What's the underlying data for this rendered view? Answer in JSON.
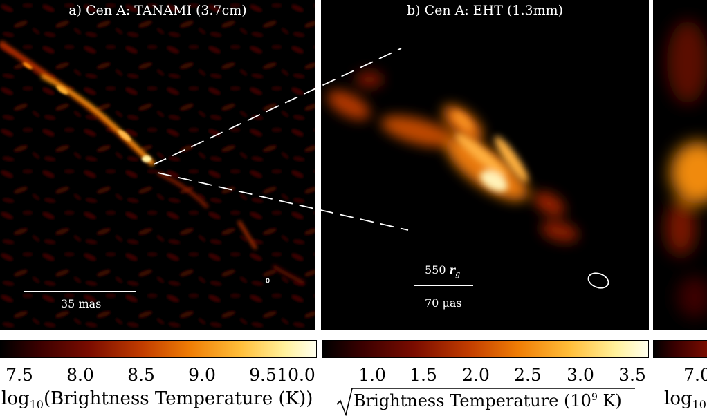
{
  "panels": {
    "a": {
      "title": "a) Cen A: TANAMI (3.7cm)",
      "scale_label": "35 mas"
    },
    "b": {
      "title": "b) Cen A: EHT (1.3mm)",
      "scale_label_top": "550 r₉",
      "scale_label_top_text": "550",
      "scale_label_top_unit": "r",
      "scale_label_top_sub": "g",
      "scale_label_bottom": "70 μas"
    }
  },
  "colorbars": {
    "a": {
      "ticks": [
        "7.5",
        "8.0",
        "8.5",
        "9.0",
        "9.5",
        "10.0"
      ],
      "label_prefix": "log",
      "label_sub": "10",
      "label_rest": "(Brightness Temperature (K))"
    },
    "b": {
      "ticks": [
        "1.0",
        "1.5",
        "2.0",
        "2.5",
        "3.0",
        "3.5"
      ],
      "label": "Brightness Temperature (10",
      "label_sup": "9",
      "label_end": " K)"
    },
    "c": {
      "ticks": [
        "7.0"
      ],
      "label_prefix": "log",
      "label_sub": "10"
    }
  },
  "colormap": [
    "#000000",
    "#3a0000",
    "#7a0c00",
    "#c23d00",
    "#ef7d05",
    "#ffbe3a",
    "#fff19c",
    "#ffffee"
  ]
}
